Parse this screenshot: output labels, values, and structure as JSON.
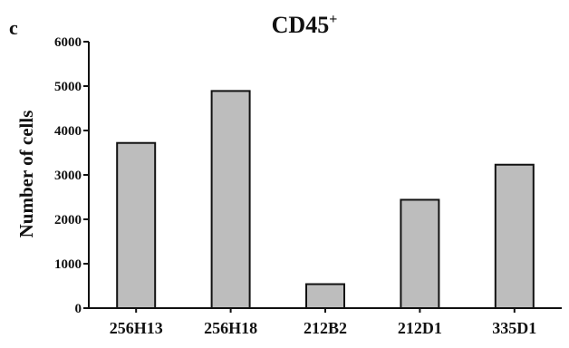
{
  "panel_label": "c",
  "chart_data": {
    "type": "bar",
    "title": "CD45",
    "title_superscript": "+",
    "xlabel": "",
    "ylabel": "Number of cells",
    "categories": [
      "256H13",
      "256H18",
      "212B2",
      "212D1",
      "335D1"
    ],
    "values": [
      3720,
      4890,
      540,
      2440,
      3230
    ],
    "ylim": [
      0,
      6000
    ],
    "yticks": [
      "0",
      "1000",
      "2000",
      "3000",
      "4000",
      "5000",
      "6000"
    ],
    "bar_color": "#bdbdbd",
    "grid": false,
    "legend": "none"
  }
}
